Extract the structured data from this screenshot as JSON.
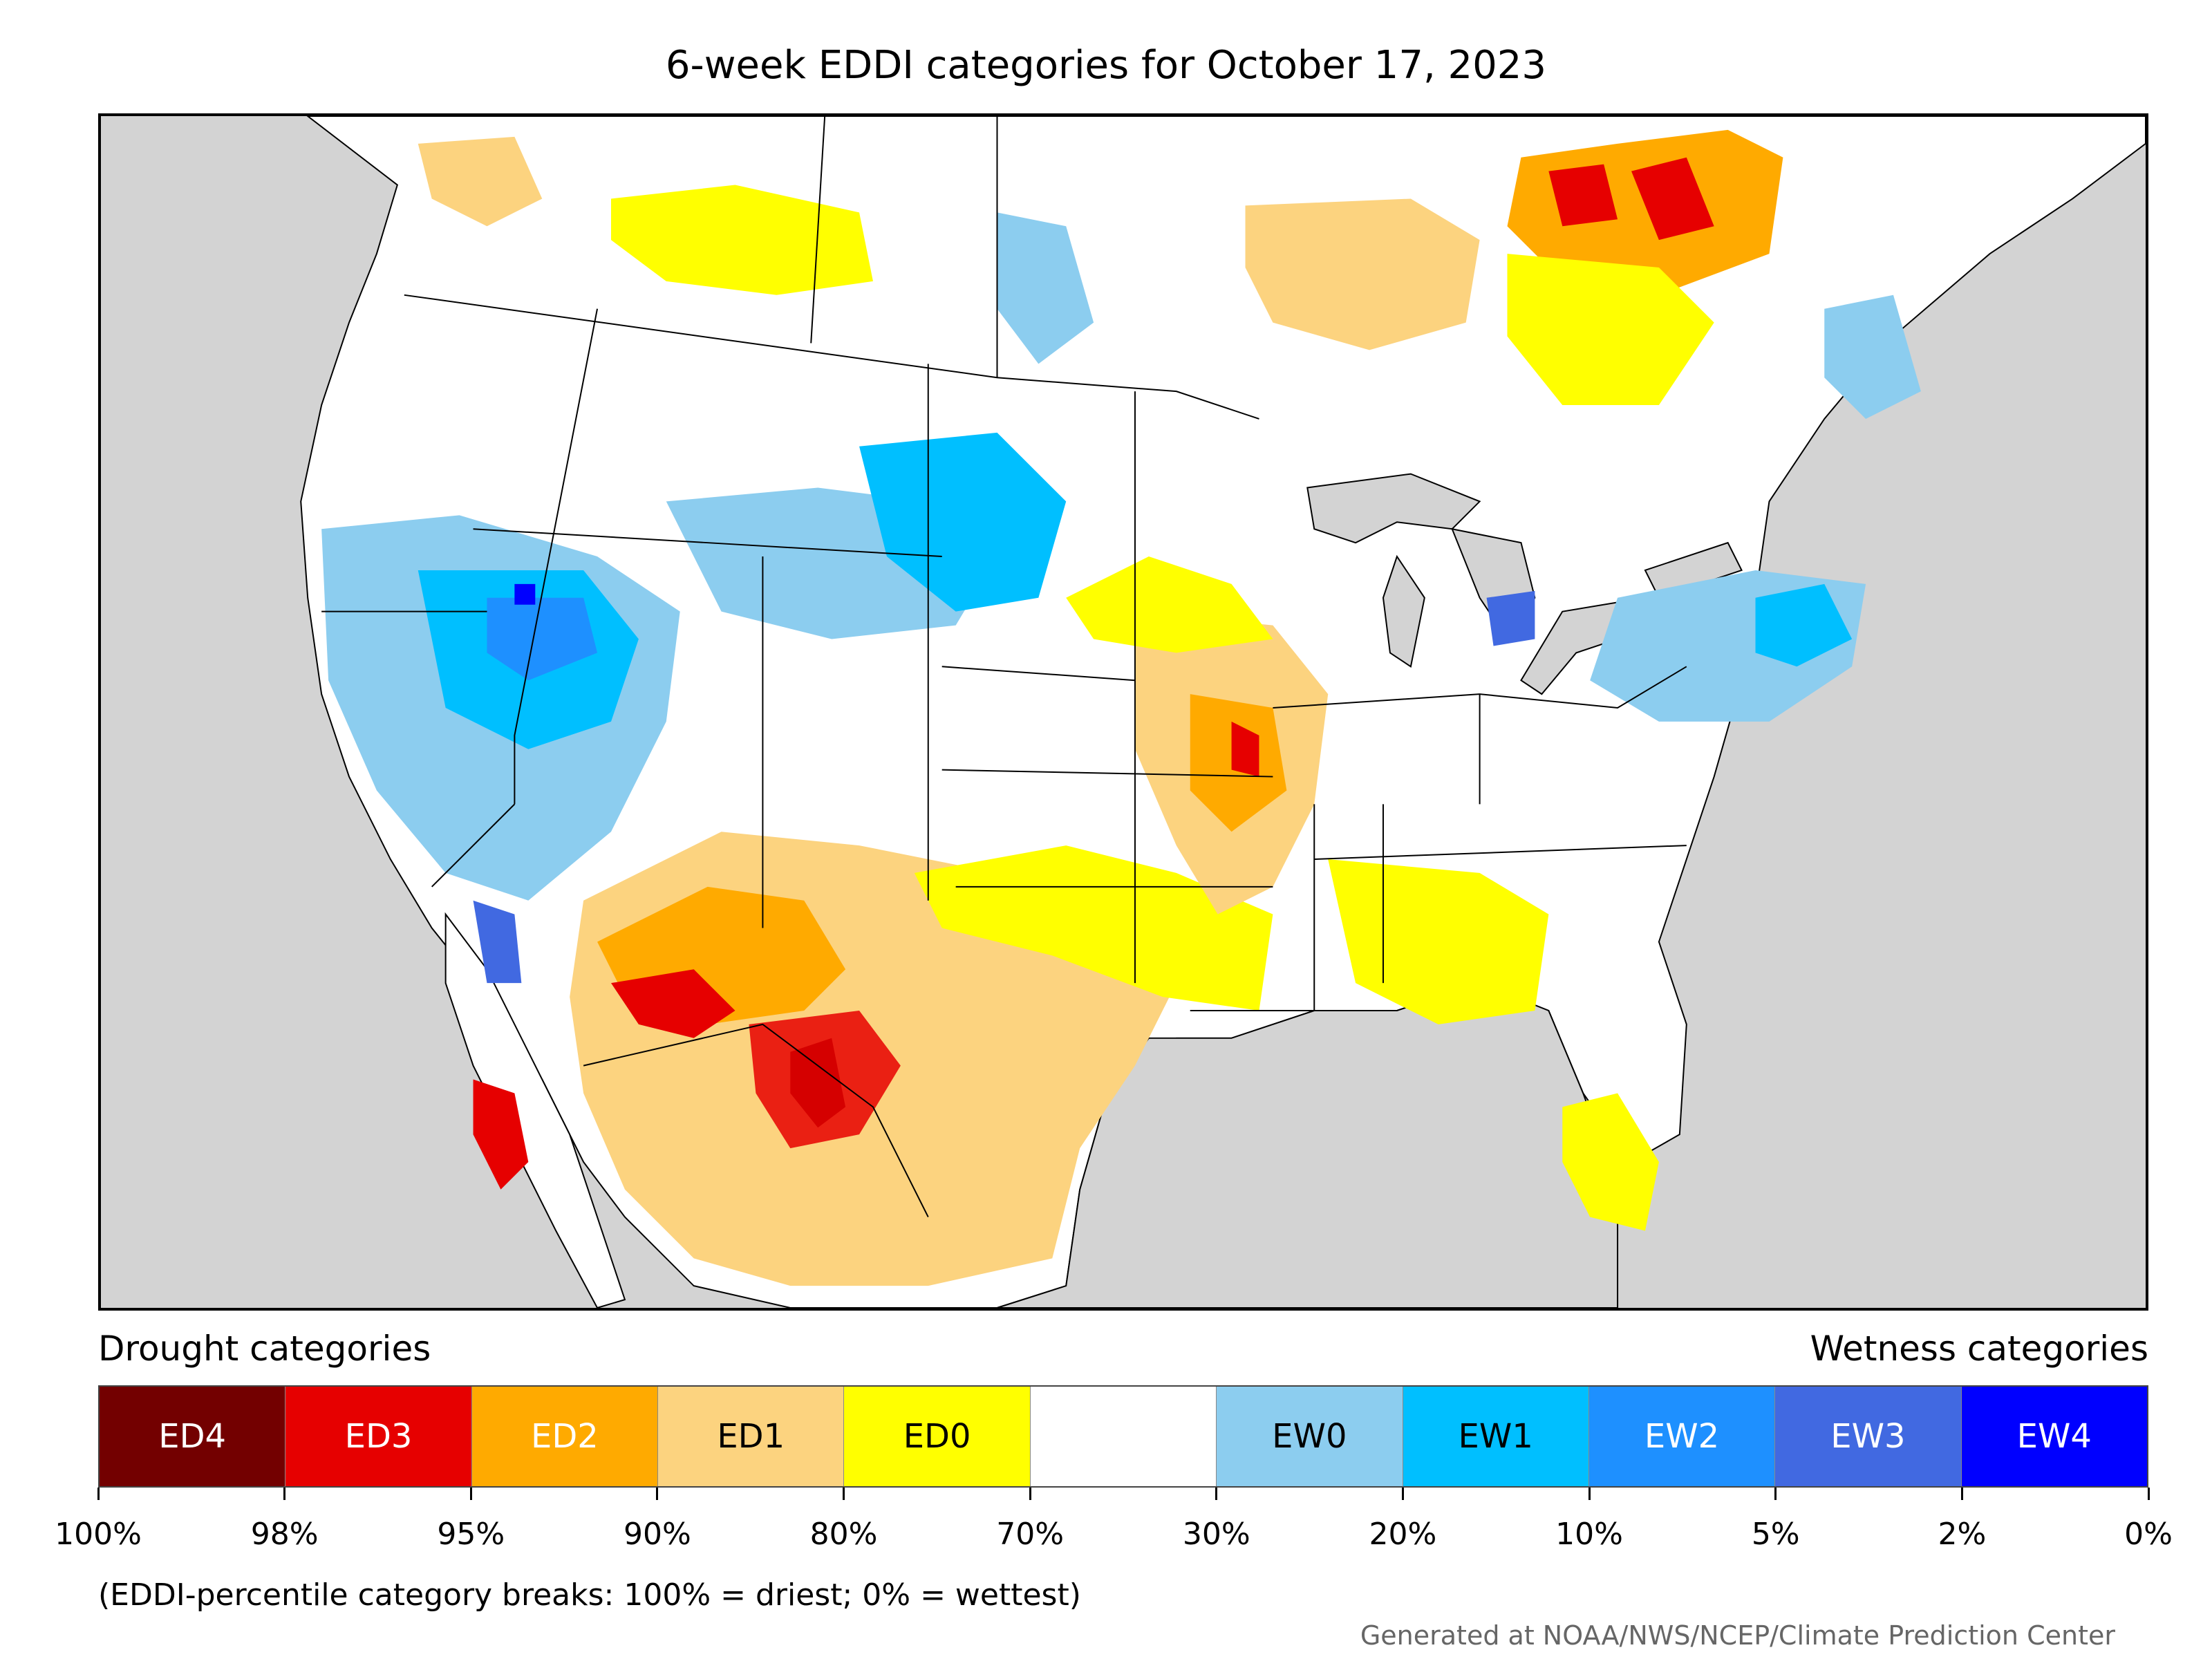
{
  "title": "6-week EDDI categories for October 17, 2023",
  "legend": {
    "drought_label": "Drought categories",
    "wetness_label": "Wetness categories",
    "categories": [
      {
        "label": "ED4",
        "color": "#730000",
        "text_color": "#ffffff"
      },
      {
        "label": "ED3",
        "color": "#e60000",
        "text_color": "#ffffff"
      },
      {
        "label": "ED2",
        "color": "#ffaa00",
        "text_color": "#ffffff"
      },
      {
        "label": "ED1",
        "color": "#fcd37f",
        "text_color": "#000000"
      },
      {
        "label": "ED0",
        "color": "#ffff00",
        "text_color": "#000000"
      },
      {
        "label": "",
        "color": "#ffffff",
        "text_color": "#000000"
      },
      {
        "label": "EW0",
        "color": "#8ccdef",
        "text_color": "#000000"
      },
      {
        "label": "EW1",
        "color": "#00bfff",
        "text_color": "#000000"
      },
      {
        "label": "EW2",
        "color": "#1e90ff",
        "text_color": "#ffffff"
      },
      {
        "label": "EW3",
        "color": "#4169e1",
        "text_color": "#ffffff"
      },
      {
        "label": "EW4",
        "color": "#0000ff",
        "text_color": "#ffffff"
      }
    ],
    "tick_labels": [
      "100%",
      "98%",
      "95%",
      "90%",
      "80%",
      "70%",
      "30%",
      "20%",
      "10%",
      "5%",
      "2%",
      "0%"
    ]
  },
  "note": "(EDDI-percentile category breaks: 100% = driest; 0% = wettest)",
  "credit": "Generated at NOAA/NWS/NCEP/Climate Prediction Center"
}
